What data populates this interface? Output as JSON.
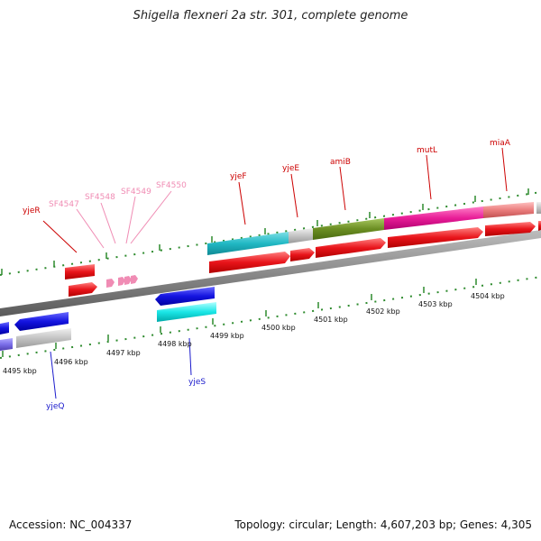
{
  "title": "Shigella flexneri 2a str. 301, complete genome",
  "footer": {
    "accession": "Accession: NC_004337",
    "topology": "Topology: circular; Length: 4,607,203 bp; Genes: 4,305"
  },
  "colors": {
    "backbone": "#8a8a8a",
    "tick": "#2e8b2e",
    "cds_red": "#e8141a",
    "label_red": "#cc0000",
    "label_pink": "#f08cb4",
    "label_blue": "#1a1acc"
  },
  "scale_labels": [
    "4495 kbp",
    "4496 kbp",
    "4497 kbp",
    "4498 kbp",
    "4499 kbp",
    "4500 kbp",
    "4501 kbp",
    "4502 kbp",
    "4503 kbp",
    "4504 kbp"
  ],
  "gene_labels": {
    "yjeR": "yjeR",
    "SF4547": "SF4547",
    "SF4548": "SF4548",
    "SF4549": "SF4549",
    "SF4550": "SF4550",
    "yjeF": "yjeF",
    "yjeE": "yjeE",
    "amiB": "amiB",
    "mutL": "mutL",
    "miaA": "miaA",
    "yjeQ": "yjeQ",
    "yjeS": "yjeS"
  }
}
